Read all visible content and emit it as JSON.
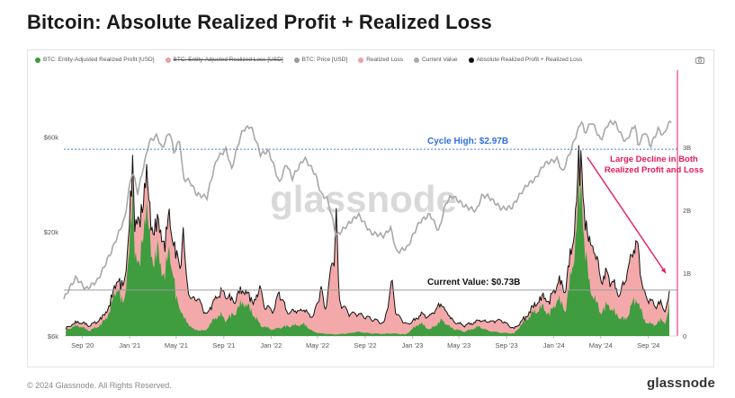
{
  "title": "Bitcoin: Absolute Realized Profit + Realized Loss",
  "legend": [
    {
      "label": "BTC: Entity-Adjusted Realized Profit [USD]",
      "color": "#3a9a3a",
      "struck": false
    },
    {
      "label": "BTC: Entity-Adjusted Realized Loss [USD]",
      "color": "#e8a0a0",
      "struck": true
    },
    {
      "label": "BTC: Price [USD]",
      "color": "#9a9a9a",
      "struck": false
    },
    {
      "label": "Realized Loss",
      "color": "#f0a0a0",
      "struck": false
    },
    {
      "label": "Current Value",
      "color": "#aaaaaa",
      "struck": false
    },
    {
      "label": "Absolute Realized Profit + Realized Loss",
      "color": "#111111",
      "struck": false
    }
  ],
  "colors": {
    "profit": "#3f9c3f",
    "loss": "#f3a9a9",
    "price": "#a8a8a8",
    "total": "#111111",
    "cycle_high_line": "#4a7de0",
    "cycle_high_text": "#2f6fe0",
    "annotation": "#e8195a",
    "right_axis_line": "#e8195a"
  },
  "chart_data": {
    "type": "area",
    "x_ticks": [
      "Sep '20",
      "Jan '21",
      "May '21",
      "Sep '21",
      "Jan '22",
      "May '22",
      "Sep '22",
      "Jan '23",
      "May '23",
      "Sep '23",
      "Jan '24",
      "May '24",
      "Sep '24"
    ],
    "y_left_ticks": [
      "$60k",
      "$20k",
      "$6k"
    ],
    "y_left_scale": "log",
    "y_left_range": [
      6000,
      130000
    ],
    "y_right_ticks": [
      "3B",
      "2B",
      "1B",
      "0"
    ],
    "y_right_range": [
      0,
      4.0
    ],
    "x_range": [
      "2020-07-15",
      "2024-11-15"
    ],
    "series": [
      {
        "name": "BTC: Entity-Adjusted Realized Profit [USD]",
        "unit": "USD billions",
        "points": [
          [
            "2020-07-20",
            0.12
          ],
          [
            "2020-08-20",
            0.2
          ],
          [
            "2020-09-20",
            0.1
          ],
          [
            "2020-10-20",
            0.22
          ],
          [
            "2020-11-10",
            0.45
          ],
          [
            "2020-11-28",
            0.95
          ],
          [
            "2020-12-15",
            0.6
          ],
          [
            "2020-12-28",
            1.3
          ],
          [
            "2021-01-05",
            2.1
          ],
          [
            "2021-01-09",
            2.95
          ],
          [
            "2021-01-14",
            1.7
          ],
          [
            "2021-01-25",
            1.2
          ],
          [
            "2021-02-10",
            2.5
          ],
          [
            "2021-02-20",
            1.9
          ],
          [
            "2021-03-05",
            1.4
          ],
          [
            "2021-03-14",
            1.6
          ],
          [
            "2021-04-01",
            1.1
          ],
          [
            "2021-04-14",
            1.7
          ],
          [
            "2021-05-01",
            0.7
          ],
          [
            "2021-05-12",
            0.55
          ],
          [
            "2021-05-19",
            0.35
          ],
          [
            "2021-06-15",
            0.12
          ],
          [
            "2021-07-15",
            0.1
          ],
          [
            "2021-08-10",
            0.35
          ],
          [
            "2021-08-25",
            0.4
          ],
          [
            "2021-09-05",
            0.3
          ],
          [
            "2021-10-01",
            0.45
          ],
          [
            "2021-10-20",
            0.65
          ],
          [
            "2021-11-09",
            0.5
          ],
          [
            "2021-12-05",
            0.2
          ],
          [
            "2022-01-05",
            0.12
          ],
          [
            "2022-02-05",
            0.18
          ],
          [
            "2022-03-28",
            0.22
          ],
          [
            "2022-04-20",
            0.08
          ],
          [
            "2022-05-10",
            0.05
          ],
          [
            "2022-06-15",
            0.03
          ],
          [
            "2022-07-20",
            0.05
          ],
          [
            "2022-08-12",
            0.08
          ],
          [
            "2022-09-15",
            0.05
          ],
          [
            "2022-10-20",
            0.04
          ],
          [
            "2022-11-10",
            0.05
          ],
          [
            "2022-12-15",
            0.03
          ],
          [
            "2023-01-20",
            0.25
          ],
          [
            "2023-02-15",
            0.12
          ],
          [
            "2023-03-18",
            0.3
          ],
          [
            "2023-04-12",
            0.15
          ],
          [
            "2023-05-15",
            0.08
          ],
          [
            "2023-06-22",
            0.18
          ],
          [
            "2023-07-15",
            0.1
          ],
          [
            "2023-08-20",
            0.06
          ],
          [
            "2023-09-20",
            0.05
          ],
          [
            "2023-10-20",
            0.3
          ],
          [
            "2023-11-10",
            0.45
          ],
          [
            "2023-12-05",
            0.55
          ],
          [
            "2023-12-20",
            0.4
          ],
          [
            "2024-01-11",
            0.7
          ],
          [
            "2024-02-01",
            0.5
          ],
          [
            "2024-02-15",
            1.2
          ],
          [
            "2024-02-28",
            1.9
          ],
          [
            "2024-03-05",
            2.7
          ],
          [
            "2024-03-13",
            2.95
          ],
          [
            "2024-03-20",
            1.7
          ],
          [
            "2024-04-01",
            1.0
          ],
          [
            "2024-04-15",
            0.7
          ],
          [
            "2024-05-01",
            0.45
          ],
          [
            "2024-05-20",
            0.6
          ],
          [
            "2024-06-10",
            0.4
          ],
          [
            "2024-07-05",
            0.3
          ],
          [
            "2024-07-20",
            0.6
          ],
          [
            "2024-08-05",
            0.7
          ],
          [
            "2024-08-20",
            0.3
          ],
          [
            "2024-09-15",
            0.2
          ],
          [
            "2024-10-01",
            0.3
          ],
          [
            "2024-10-15",
            0.25
          ],
          [
            "2024-10-25",
            0.55
          ]
        ]
      },
      {
        "name": "Realized Loss",
        "unit": "USD billions",
        "points": [
          [
            "2020-07-20",
            0.03
          ],
          [
            "2020-09-05",
            0.08
          ],
          [
            "2020-11-25",
            0.12
          ],
          [
            "2021-01-11",
            0.5
          ],
          [
            "2021-01-22",
            0.7
          ],
          [
            "2021-02-25",
            0.5
          ],
          [
            "2021-04-20",
            0.6
          ],
          [
            "2021-05-12",
            0.8
          ],
          [
            "2021-05-19",
            1.5
          ],
          [
            "2021-05-24",
            0.9
          ],
          [
            "2021-06-08",
            0.45
          ],
          [
            "2021-06-22",
            0.6
          ],
          [
            "2021-07-20",
            0.25
          ],
          [
            "2021-09-07",
            0.45
          ],
          [
            "2021-09-21",
            0.25
          ],
          [
            "2021-11-16",
            0.2
          ],
          [
            "2021-12-04",
            0.65
          ],
          [
            "2021-12-15",
            0.35
          ],
          [
            "2022-01-10",
            0.35
          ],
          [
            "2022-01-22",
            0.65
          ],
          [
            "2022-02-10",
            0.25
          ],
          [
            "2022-03-07",
            0.25
          ],
          [
            "2022-04-20",
            0.25
          ],
          [
            "2022-05-10",
            0.8
          ],
          [
            "2022-05-20",
            0.4
          ],
          [
            "2022-06-13",
            1.45
          ],
          [
            "2022-06-18",
            2.2
          ],
          [
            "2022-06-25",
            0.6
          ],
          [
            "2022-07-20",
            0.35
          ],
          [
            "2022-08-20",
            0.3
          ],
          [
            "2022-09-20",
            0.25
          ],
          [
            "2022-10-20",
            0.18
          ],
          [
            "2022-11-09",
            0.9
          ],
          [
            "2022-11-20",
            0.35
          ],
          [
            "2022-12-20",
            0.15
          ],
          [
            "2023-01-10",
            0.12
          ],
          [
            "2023-03-10",
            0.3
          ],
          [
            "2023-04-20",
            0.12
          ],
          [
            "2023-06-15",
            0.1
          ],
          [
            "2023-08-18",
            0.22
          ],
          [
            "2023-09-20",
            0.08
          ],
          [
            "2023-10-20",
            0.05
          ],
          [
            "2024-01-12",
            0.3
          ],
          [
            "2024-01-24",
            0.35
          ],
          [
            "2024-03-20",
            0.5
          ],
          [
            "2024-04-13",
            0.9
          ],
          [
            "2024-04-30",
            0.6
          ],
          [
            "2024-06-20",
            0.4
          ],
          [
            "2024-07-05",
            0.75
          ],
          [
            "2024-08-05",
            1.0
          ],
          [
            "2024-08-15",
            0.5
          ],
          [
            "2024-09-06",
            0.4
          ],
          [
            "2024-10-10",
            0.25
          ],
          [
            "2024-10-25",
            0.18
          ]
        ]
      },
      {
        "name": "BTC: Price [USD]",
        "unit": "USD",
        "points": [
          [
            "2020-07-15",
            9200
          ],
          [
            "2020-08-15",
            11800
          ],
          [
            "2020-09-10",
            10300
          ],
          [
            "2020-10-10",
            11400
          ],
          [
            "2020-10-25",
            13100
          ],
          [
            "2020-11-15",
            16000
          ],
          [
            "2020-12-01",
            19200
          ],
          [
            "2020-12-20",
            23500
          ],
          [
            "2021-01-08",
            40500
          ],
          [
            "2021-01-22",
            31000
          ],
          [
            "2021-02-10",
            46000
          ],
          [
            "2021-02-21",
            57000
          ],
          [
            "2021-03-13",
            61000
          ],
          [
            "2021-03-25",
            52000
          ],
          [
            "2021-04-14",
            64000
          ],
          [
            "2021-04-25",
            50000
          ],
          [
            "2021-05-10",
            58000
          ],
          [
            "2021-05-19",
            37000
          ],
          [
            "2021-06-05",
            36000
          ],
          [
            "2021-06-22",
            31000
          ],
          [
            "2021-07-20",
            29800
          ],
          [
            "2021-08-15",
            47000
          ],
          [
            "2021-09-07",
            52000
          ],
          [
            "2021-09-21",
            41000
          ],
          [
            "2021-10-20",
            65000
          ],
          [
            "2021-11-09",
            68000
          ],
          [
            "2021-12-04",
            49000
          ],
          [
            "2021-12-25",
            51000
          ],
          [
            "2022-01-22",
            35000
          ],
          [
            "2022-02-10",
            44000
          ],
          [
            "2022-02-24",
            37000
          ],
          [
            "2022-03-28",
            47000
          ],
          [
            "2022-04-25",
            39000
          ],
          [
            "2022-05-10",
            31000
          ],
          [
            "2022-05-25",
            29500
          ],
          [
            "2022-06-18",
            19000
          ],
          [
            "2022-07-10",
            21000
          ],
          [
            "2022-08-14",
            24400
          ],
          [
            "2022-09-15",
            19800
          ],
          [
            "2022-10-20",
            19100
          ],
          [
            "2022-11-05",
            21000
          ],
          [
            "2022-11-21",
            15800
          ],
          [
            "2022-12-20",
            16800
          ],
          [
            "2023-01-20",
            22500
          ],
          [
            "2023-02-15",
            24500
          ],
          [
            "2023-03-10",
            20000
          ],
          [
            "2023-03-30",
            28400
          ],
          [
            "2023-04-14",
            30400
          ],
          [
            "2023-05-15",
            27000
          ],
          [
            "2023-06-15",
            25500
          ],
          [
            "2023-06-30",
            30500
          ],
          [
            "2023-07-15",
            30200
          ],
          [
            "2023-08-18",
            26200
          ],
          [
            "2023-09-15",
            26600
          ],
          [
            "2023-10-24",
            34500
          ],
          [
            "2023-11-15",
            37000
          ],
          [
            "2023-12-08",
            44000
          ],
          [
            "2024-01-11",
            46500
          ],
          [
            "2024-01-23",
            39500
          ],
          [
            "2024-02-15",
            52000
          ],
          [
            "2024-03-05",
            66000
          ],
          [
            "2024-03-13",
            73000
          ],
          [
            "2024-03-20",
            62500
          ],
          [
            "2024-04-08",
            71500
          ],
          [
            "2024-04-20",
            64000
          ],
          [
            "2024-05-01",
            57500
          ],
          [
            "2024-05-21",
            70500
          ],
          [
            "2024-06-07",
            71000
          ],
          [
            "2024-06-24",
            60500
          ],
          [
            "2024-07-05",
            56500
          ],
          [
            "2024-07-29",
            69500
          ],
          [
            "2024-08-05",
            54000
          ],
          [
            "2024-08-24",
            64000
          ],
          [
            "2024-09-06",
            53500
          ],
          [
            "2024-09-27",
            65800
          ],
          [
            "2024-10-10",
            60500
          ],
          [
            "2024-10-20",
            68500
          ],
          [
            "2024-10-30",
            72000
          ]
        ]
      }
    ],
    "reference_lines": [
      {
        "label": "Cycle High: $2.97B",
        "value": 2.97,
        "style": "dotted"
      },
      {
        "label": "Current Value: $0.73B",
        "value": 0.73,
        "style": "solid"
      }
    ],
    "annotation": {
      "text": [
        "Large Decline in Both",
        "Realized Profit and Loss"
      ],
      "arrow_from": [
        "2024-03-18",
        2.9
      ],
      "arrow_to": [
        "2024-10-25",
        1.0
      ]
    }
  },
  "watermark": "glassnode",
  "footer": {
    "copyright": "© 2024 Glassnode. All Rights Reserved.",
    "brand": "glassnode"
  }
}
